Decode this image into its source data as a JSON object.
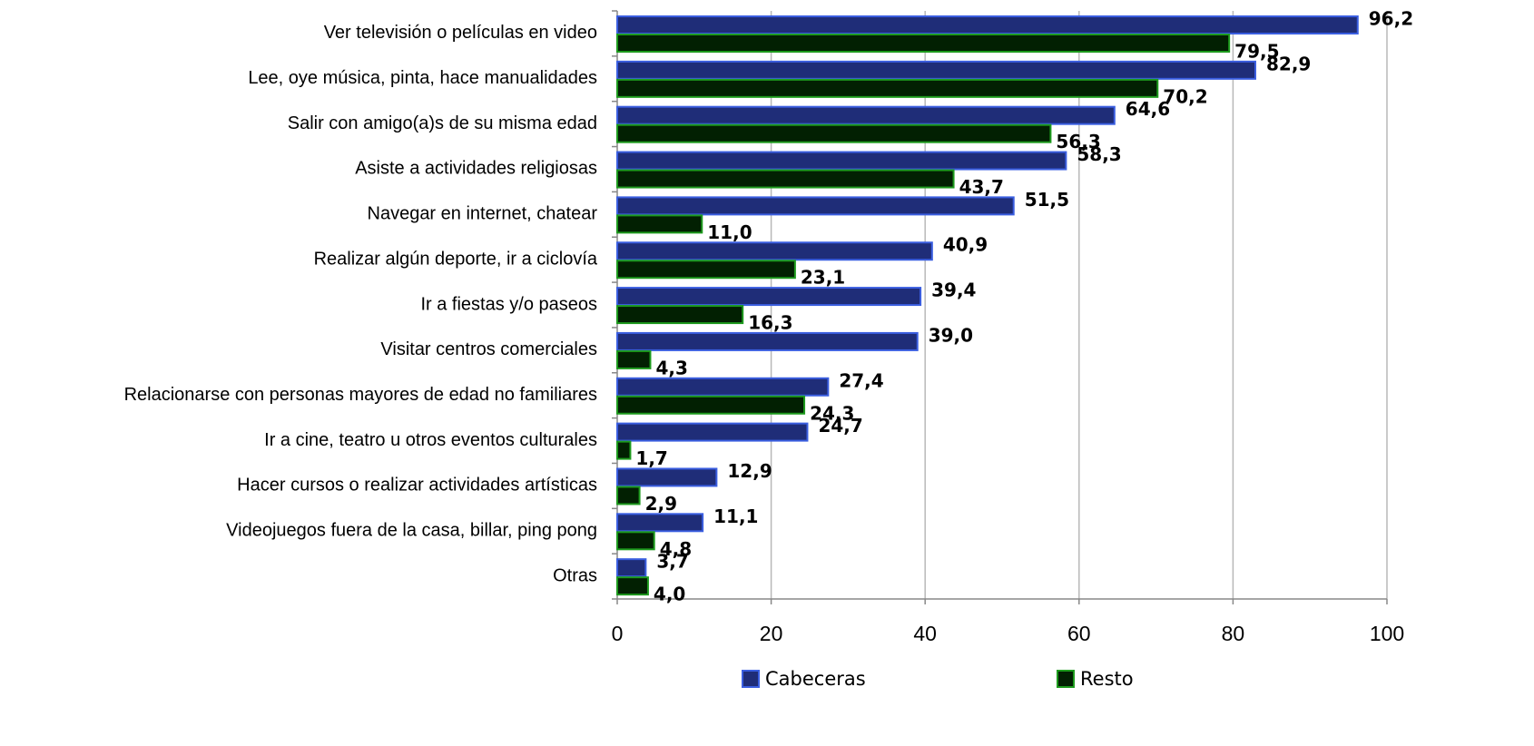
{
  "chart_data": {
    "type": "hbar",
    "categories": [
      "Ver televisión o películas en video",
      "Lee, oye música, pinta, hace manualidades",
      "Salir con amigo(a)s de su misma edad",
      "Asiste a actividades religiosas",
      "Navegar en internet, chatear",
      "Realizar algún deporte, ir a ciclovía",
      "Ir a fiestas y/o paseos",
      "Visitar centros comerciales",
      "Relacionarse con personas mayores de edad no familiares",
      "Ir a cine, teatro u otros eventos culturales",
      "Hacer cursos o realizar actividades artísticas",
      "Videojuegos fuera de la casa, billar, ping pong",
      "Otras"
    ],
    "series": [
      {
        "name": "Cabeceras",
        "color": "#1f2d78",
        "values": [
          96.2,
          82.9,
          64.6,
          58.3,
          51.5,
          40.9,
          39.4,
          39.0,
          27.4,
          24.7,
          12.9,
          11.1,
          3.7
        ],
        "value_labels": [
          "96,2",
          "82,9",
          "64,6",
          "58,3",
          "51,5",
          "40,9",
          "39,4",
          "39,0",
          "27,4",
          "24,7",
          "12,9",
          "11,1",
          "3,7"
        ]
      },
      {
        "name": "Resto",
        "color": "#022002",
        "values": [
          79.5,
          70.2,
          56.3,
          43.7,
          11.0,
          23.1,
          16.3,
          4.3,
          24.3,
          1.7,
          2.9,
          4.8,
          4.0
        ],
        "value_labels": [
          "79,5",
          "70,2",
          "56,3",
          "43,7",
          "11,0",
          "23,1",
          "16,3",
          "4,3",
          "24,3",
          "1,7",
          "2,9",
          "4,8",
          "4,0"
        ]
      }
    ],
    "xlim": [
      0,
      100
    ],
    "xticks": [
      0,
      20,
      40,
      60,
      80,
      100
    ],
    "grid": true,
    "legend": "bottom"
  }
}
